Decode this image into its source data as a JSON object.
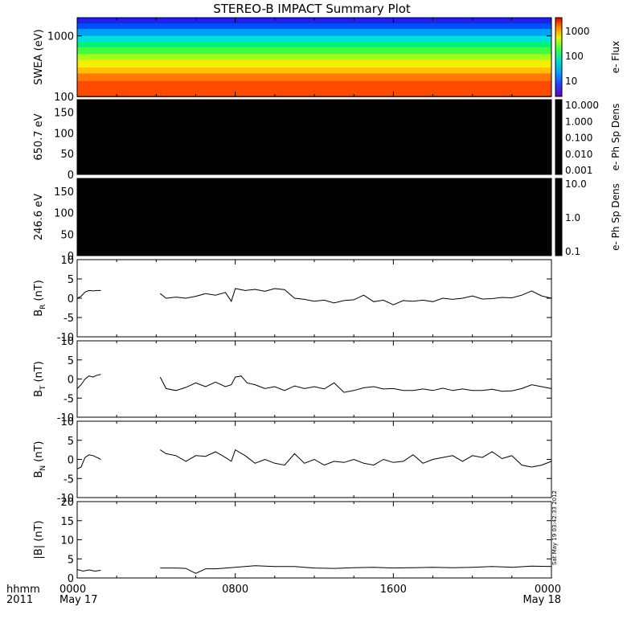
{
  "chart_data": [
    {
      "id": "swea",
      "type": "heatmap",
      "title": "STEREO-B IMPACT Summary Plot",
      "ylabel": "SWEA (eV)",
      "yscale": "log",
      "ylim": [
        100,
        2000
      ],
      "yticks": [
        "100",
        "1000"
      ],
      "colorbar": {
        "label": "e- Flux",
        "scale": "log",
        "ticks": [
          "10",
          "100",
          "1000"
        ]
      },
      "bands": [
        {
          "energy": 2000,
          "color": "#2020e8"
        },
        {
          "energy": 1600,
          "color": "#0050ff"
        },
        {
          "energy": 1300,
          "color": "#00a0ff"
        },
        {
          "energy": 1000,
          "color": "#00e0e0"
        },
        {
          "energy": 800,
          "color": "#00f080"
        },
        {
          "energy": 650,
          "color": "#40ff40"
        },
        {
          "energy": 500,
          "color": "#a0ff20"
        },
        {
          "energy": 400,
          "color": "#f0f000"
        },
        {
          "energy": 300,
          "color": "#ffc000"
        },
        {
          "energy": 240,
          "color": "#ff7a00"
        },
        {
          "energy": 180,
          "color": "#ff4a00"
        },
        {
          "energy": 100,
          "color": "#f02000"
        }
      ]
    },
    {
      "id": "pad650",
      "type": "heatmap",
      "ylabel": "650.7 eV",
      "ylim": [
        0,
        180
      ],
      "yticks": [
        "0",
        "50",
        "100",
        "150"
      ],
      "fill": "#000000",
      "colorbar": {
        "label": "e- Ph Sp Dens",
        "ticks": [
          "10.000",
          "1.000",
          "0.100",
          "0.010",
          "0.001"
        ]
      }
    },
    {
      "id": "pad246",
      "type": "heatmap",
      "ylabel": "246.6 eV",
      "ylim": [
        0,
        180
      ],
      "yticks": [
        "0",
        "50",
        "100",
        "150"
      ],
      "fill": "#000000",
      "colorbar": {
        "label": "e- Ph Sp Dens",
        "ticks": [
          "10.0",
          "1.0",
          "0.1"
        ]
      }
    },
    {
      "id": "br",
      "type": "line",
      "ylabel": "B",
      "ylabel_sub": "R",
      "ylabel_unit": "(nT)",
      "ylim": [
        -10,
        10
      ],
      "yticks": [
        "-10",
        "-5",
        "0",
        "5",
        "10"
      ],
      "series": [
        {
          "x": [
            0,
            0.2,
            0.4,
            0.6,
            0.8,
            1.0,
            1.2
          ],
          "y": [
            0,
            0.5,
            1.6,
            2.0,
            1.9,
            2.0,
            2.0
          ]
        },
        {
          "x": [
            4.2,
            4.5,
            5.0,
            5.5,
            6.0,
            6.5,
            7.0,
            7.5,
            7.8,
            8.0,
            8.5,
            9.0,
            9.5,
            10.0,
            10.5,
            11.0,
            11.5,
            12.0,
            12.5,
            13.0,
            13.5,
            14.0,
            14.5,
            15.0,
            15.5,
            16.0,
            16.5,
            17.0,
            17.5,
            18.0,
            18.5,
            19.0,
            19.5,
            20.0,
            20.5,
            21.0,
            21.5,
            22.0,
            22.5,
            23.0,
            23.5,
            24.0
          ],
          "y": [
            1.2,
            0.0,
            0.3,
            0.0,
            0.5,
            1.2,
            0.8,
            1.5,
            -0.8,
            2.5,
            2.0,
            2.3,
            1.8,
            2.5,
            2.2,
            0.0,
            -0.3,
            -0.8,
            -0.5,
            -1.2,
            -0.6,
            -0.4,
            0.8,
            -0.9,
            -0.5,
            -1.7,
            -0.6,
            -0.8,
            -0.5,
            -0.9,
            0.0,
            -0.3,
            0.0,
            0.6,
            -0.2,
            -0.1,
            0.2,
            0.1,
            0.8,
            1.9,
            0.6,
            0.0
          ]
        }
      ]
    },
    {
      "id": "bt",
      "type": "line",
      "ylabel": "B",
      "ylabel_sub": "T",
      "ylabel_unit": "(nT)",
      "ylim": [
        -10,
        10
      ],
      "yticks": [
        "-10",
        "-5",
        "0",
        "5",
        "10"
      ],
      "series": [
        {
          "x": [
            0,
            0.2,
            0.4,
            0.6,
            0.8,
            1.0,
            1.2
          ],
          "y": [
            -2.5,
            -1.5,
            0.0,
            0.8,
            0.5,
            1.0,
            1.2
          ]
        },
        {
          "x": [
            4.2,
            4.5,
            5.0,
            5.5,
            6.0,
            6.5,
            7.0,
            7.5,
            7.8,
            8.0,
            8.3,
            8.6,
            9.0,
            9.5,
            10.0,
            10.5,
            11.0,
            11.5,
            12.0,
            12.5,
            13.0,
            13.5,
            14.0,
            14.5,
            15.0,
            15.5,
            16.0,
            16.5,
            17.0,
            17.5,
            18.0,
            18.5,
            19.0,
            19.5,
            20.0,
            20.5,
            21.0,
            21.5,
            22.0,
            22.5,
            23.0,
            23.5,
            24.0
          ],
          "y": [
            0.5,
            -2.5,
            -3.0,
            -2.2,
            -1.0,
            -2.0,
            -0.8,
            -2.0,
            -1.5,
            0.5,
            0.8,
            -1.0,
            -1.5,
            -2.5,
            -2.0,
            -3.0,
            -1.8,
            -2.5,
            -2.0,
            -2.6,
            -1.0,
            -3.5,
            -3.0,
            -2.3,
            -2.0,
            -2.6,
            -2.5,
            -3.0,
            -3.0,
            -2.6,
            -3.0,
            -2.4,
            -3.0,
            -2.6,
            -3.0,
            -3.0,
            -2.7,
            -3.2,
            -3.1,
            -2.5,
            -1.5,
            -2.0,
            -2.5
          ]
        }
      ]
    },
    {
      "id": "bn",
      "type": "line",
      "ylabel": "B",
      "ylabel_sub": "N",
      "ylabel_unit": "(nT)",
      "ylim": [
        -10,
        10
      ],
      "yticks": [
        "-10",
        "-5",
        "0",
        "5",
        "10"
      ],
      "series": [
        {
          "x": [
            0,
            0.2,
            0.4,
            0.6,
            0.8,
            1.0,
            1.2
          ],
          "y": [
            -2.5,
            -2.0,
            0.5,
            1.2,
            1.0,
            0.5,
            0.0
          ]
        },
        {
          "x": [
            4.2,
            4.5,
            5.0,
            5.5,
            6.0,
            6.5,
            7.0,
            7.5,
            7.8,
            8.0,
            8.5,
            9.0,
            9.5,
            10.0,
            10.5,
            11.0,
            11.5,
            12.0,
            12.5,
            13.0,
            13.5,
            14.0,
            14.5,
            15.0,
            15.5,
            16.0,
            16.5,
            17.0,
            17.5,
            18.0,
            18.5,
            19.0,
            19.5,
            20.0,
            20.5,
            21.0,
            21.5,
            22.0,
            22.5,
            23.0,
            23.5,
            24.0
          ],
          "y": [
            2.5,
            1.5,
            1.0,
            -0.5,
            1.0,
            0.8,
            2.0,
            0.5,
            -0.5,
            2.5,
            1.0,
            -1.0,
            0.0,
            -1.0,
            -1.5,
            1.5,
            -1.0,
            0.0,
            -1.5,
            -0.5,
            -0.8,
            0.0,
            -1.0,
            -1.5,
            0.0,
            -0.8,
            -0.5,
            1.2,
            -1.0,
            0.0,
            0.5,
            1.0,
            -0.5,
            1.0,
            0.5,
            2.0,
            0.2,
            1.0,
            -1.5,
            -2.0,
            -1.5,
            -0.5
          ]
        }
      ]
    },
    {
      "id": "bmag",
      "type": "line",
      "ylabel": "|B| (nT)",
      "ylim": [
        0,
        20
      ],
      "yticks": [
        "0",
        "5",
        "10",
        "15",
        "20"
      ],
      "series": [
        {
          "x": [
            0,
            0.3,
            0.6,
            0.9,
            1.2
          ],
          "y": [
            2.2,
            1.8,
            2.1,
            1.8,
            2.0
          ]
        },
        {
          "x": [
            4.2,
            5.0,
            5.5,
            6.0,
            6.5,
            7.0,
            8.0,
            9.0,
            10.0,
            11.0,
            12.0,
            13.0,
            14.0,
            15.0,
            16.0,
            17.0,
            18.0,
            19.0,
            20.0,
            21.0,
            22.0,
            23.0,
            24.0
          ],
          "y": [
            2.6,
            2.6,
            2.5,
            1.2,
            2.4,
            2.4,
            2.8,
            3.2,
            3.0,
            3.0,
            2.6,
            2.5,
            2.7,
            2.8,
            2.6,
            2.7,
            2.8,
            2.7,
            2.8,
            3.0,
            2.8,
            3.1,
            3.0
          ]
        }
      ]
    }
  ],
  "x_axis": {
    "unit": "hours",
    "xlim": [
      0,
      24
    ],
    "major_ticks": [
      {
        "x": 0,
        "label": "0000",
        "date": "May 17"
      },
      {
        "x": 8,
        "label": "0800",
        "date": ""
      },
      {
        "x": 16,
        "label": "1600",
        "date": ""
      },
      {
        "x": 24,
        "label": "0000",
        "date": "May 18"
      }
    ],
    "row_label": "hhmm",
    "year": "2011"
  },
  "timestamp": "Sat May 19 03:42:33 2012"
}
